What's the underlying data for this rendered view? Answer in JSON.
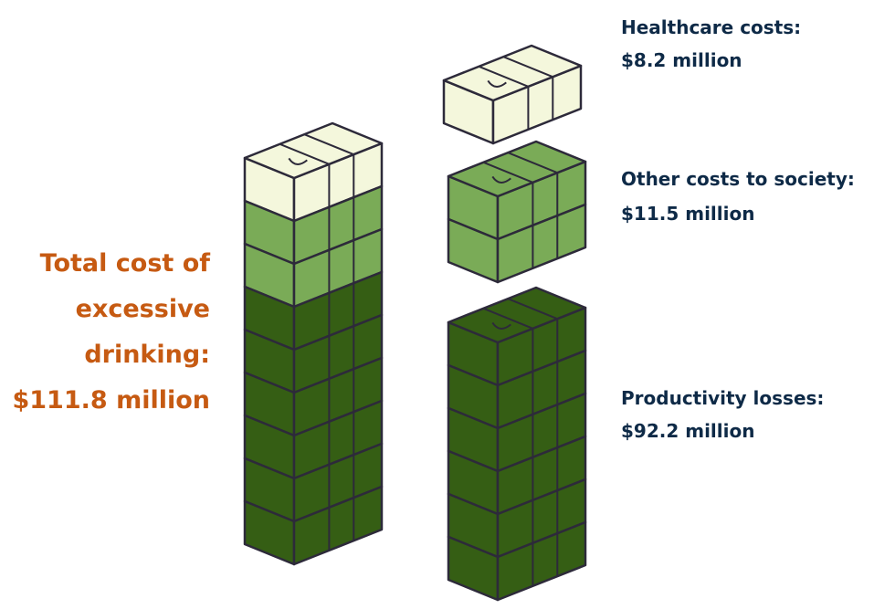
{
  "total": {
    "lines": [
      "Total cost of",
      "excessive",
      "drinking:",
      "$111.8 million"
    ]
  },
  "labels": [
    {
      "title": "Healthcare costs:",
      "value": "$8.2 million"
    },
    {
      "title": "Other costs to society:",
      "value": "$11.5 million"
    },
    {
      "title": "Productivity losses:",
      "value": "$92.2 million"
    }
  ]
}
